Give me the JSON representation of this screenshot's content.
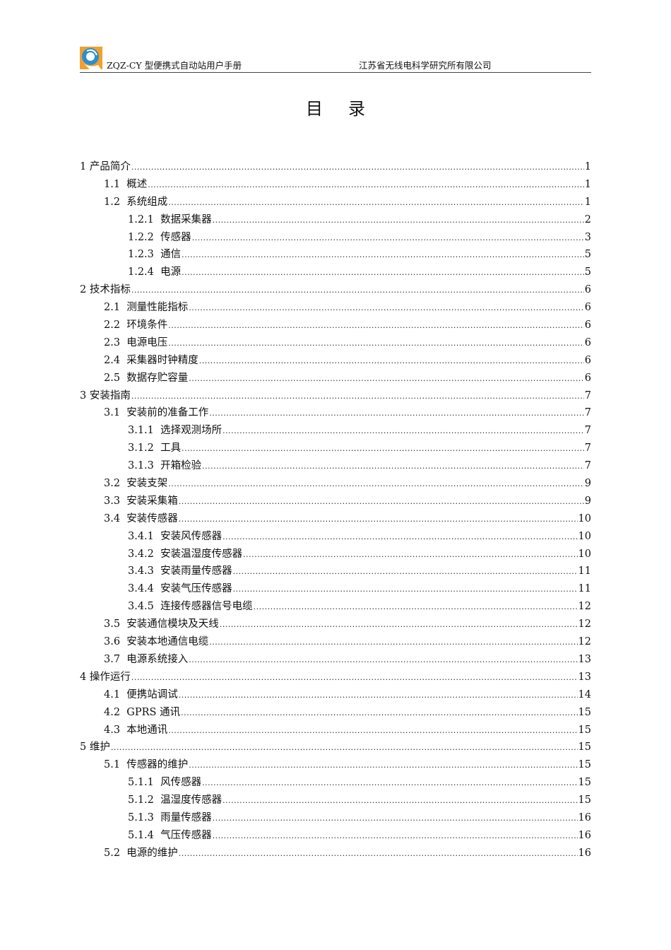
{
  "header": {
    "left": "ZQZ-CY 型便携式自动站用户手册",
    "right": "江苏省无线电科学研究所有限公司",
    "logo_colors": {
      "blue": "#2a8fd0",
      "orange": "#f0a030"
    }
  },
  "title": "目录",
  "toc": [
    {
      "level": 1,
      "num": "1",
      "label": "产品简介",
      "page": "1"
    },
    {
      "level": 2,
      "num": "1.1",
      "label": "概述",
      "page": "1"
    },
    {
      "level": 2,
      "num": "1.2",
      "label": "系统组成",
      "page": "1"
    },
    {
      "level": 3,
      "num": "1.2.1",
      "label": "数据采集器",
      "page": "2"
    },
    {
      "level": 3,
      "num": "1.2.2",
      "label": "传感器",
      "page": "3"
    },
    {
      "level": 3,
      "num": "1.2.3",
      "label": "通信",
      "page": "5"
    },
    {
      "level": 3,
      "num": "1.2.4",
      "label": "电源",
      "page": "5"
    },
    {
      "level": 1,
      "num": "2",
      "label": "技术指标",
      "page": "6"
    },
    {
      "level": 2,
      "num": "2.1",
      "label": "测量性能指标",
      "page": "6"
    },
    {
      "level": 2,
      "num": "2.2",
      "label": "环境条件",
      "page": "6"
    },
    {
      "level": 2,
      "num": "2.3",
      "label": "电源电压",
      "page": "6"
    },
    {
      "level": 2,
      "num": "2.4",
      "label": "采集器时钟精度",
      "page": "6"
    },
    {
      "level": 2,
      "num": "2.5",
      "label": "数据存贮容量",
      "page": "6"
    },
    {
      "level": 1,
      "num": "3",
      "label": "安装指南",
      "page": "7"
    },
    {
      "level": 2,
      "num": "3.1",
      "label": "安装前的准备工作",
      "page": "7"
    },
    {
      "level": 3,
      "num": "3.1.1",
      "label": "选择观测场所",
      "page": "7"
    },
    {
      "level": 3,
      "num": "3.1.2",
      "label": "工具",
      "page": "7"
    },
    {
      "level": 3,
      "num": "3.1.3",
      "label": "开箱检验",
      "page": "7"
    },
    {
      "level": 2,
      "num": "3.2",
      "label": "安装支架",
      "page": "9"
    },
    {
      "level": 2,
      "num": "3.3",
      "label": "安装采集箱",
      "page": "9"
    },
    {
      "level": 2,
      "num": "3.4",
      "label": "安装传感器",
      "page": "10"
    },
    {
      "level": 3,
      "num": "3.4.1",
      "label": "安装风传感器",
      "page": "10"
    },
    {
      "level": 3,
      "num": "3.4.2",
      "label": "安装温湿度传感器",
      "page": "10"
    },
    {
      "level": 3,
      "num": "3.4.3",
      "label": "安装雨量传感器",
      "page": "11"
    },
    {
      "level": 3,
      "num": "3.4.4",
      "label": "安装气压传感器",
      "page": "11"
    },
    {
      "level": 3,
      "num": "3.4.5",
      "label": "连接传感器信号电缆",
      "page": "12"
    },
    {
      "level": 2,
      "num": "3.5",
      "label": "安装通信模块及天线",
      "page": "12"
    },
    {
      "level": 2,
      "num": "3.6",
      "label": "安装本地通信电缆",
      "page": "12"
    },
    {
      "level": 2,
      "num": "3.7",
      "label": "电源系统接入",
      "page": "13"
    },
    {
      "level": 1,
      "num": "4",
      "label": "操作运行",
      "page": "13"
    },
    {
      "level": 2,
      "num": "4.1",
      "label": "便携站调试",
      "page": "14"
    },
    {
      "level": 2,
      "num": "4.2",
      "label": "GPRS 通讯",
      "page": "15"
    },
    {
      "level": 2,
      "num": "4.3",
      "label": "本地通讯",
      "page": "15"
    },
    {
      "level": 1,
      "num": "5",
      "label": "维护",
      "page": "15"
    },
    {
      "level": 2,
      "num": "5.1",
      "label": "传感器的维护",
      "page": "15"
    },
    {
      "level": 3,
      "num": "5.1.1",
      "label": "风传感器",
      "page": "15"
    },
    {
      "level": 3,
      "num": "5.1.2",
      "label": "温湿度传感器",
      "page": "15"
    },
    {
      "level": 3,
      "num": "5.1.3",
      "label": "雨量传感器",
      "page": "16"
    },
    {
      "level": 3,
      "num": "5.1.4",
      "label": "气压传感器",
      "page": "16"
    },
    {
      "level": 2,
      "num": "5.2",
      "label": "电源的维护",
      "page": "16"
    }
  ]
}
